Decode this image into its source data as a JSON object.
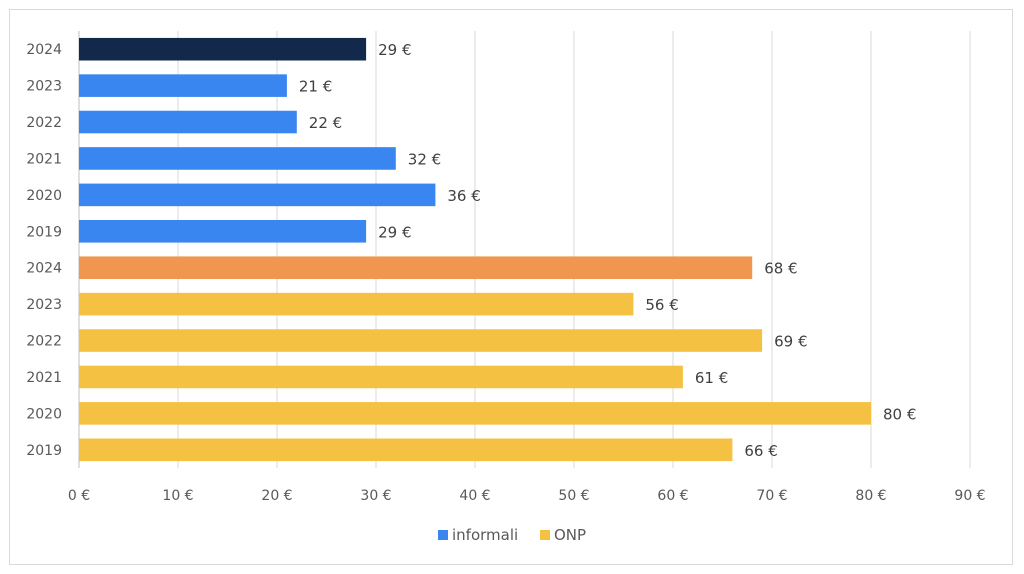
{
  "chart_data": {
    "type": "bar",
    "orientation": "horizontal",
    "title": "",
    "xlabel": "",
    "ylabel": "",
    "xlim": [
      0,
      90
    ],
    "x_ticks": [
      0,
      10,
      20,
      30,
      40,
      50,
      60,
      70,
      80,
      90
    ],
    "tick_suffix": " €",
    "grid": "vertical",
    "legend_position": "bottom",
    "categories": [
      "2024",
      "2023",
      "2022",
      "2021",
      "2020",
      "2019",
      "2024",
      "2023",
      "2022",
      "2021",
      "2020",
      "2019"
    ],
    "values": [
      29,
      21,
      22,
      32,
      36,
      29,
      68,
      56,
      69,
      61,
      80,
      66
    ],
    "data_labels": [
      "29 €",
      "21 €",
      "22 €",
      "32 €",
      "36 €",
      "29 €",
      "68 €",
      "56 €",
      "69 €",
      "61 €",
      "80 €",
      "66 €"
    ],
    "bar_group": [
      "informali",
      "informali",
      "informali",
      "informali",
      "informali",
      "informali",
      "ONP",
      "ONP",
      "ONP",
      "ONP",
      "ONP",
      "ONP"
    ],
    "bar_colors": [
      "#13294b",
      "#3a86f0",
      "#3a86f0",
      "#3a86f0",
      "#3a86f0",
      "#3a86f0",
      "#f0964f",
      "#f5c143",
      "#f5c143",
      "#f5c143",
      "#f5c143",
      "#f5c143"
    ],
    "series": [
      {
        "name": "informali",
        "color": "#3a86f0"
      },
      {
        "name": "ONP",
        "color": "#f5c143"
      }
    ]
  }
}
